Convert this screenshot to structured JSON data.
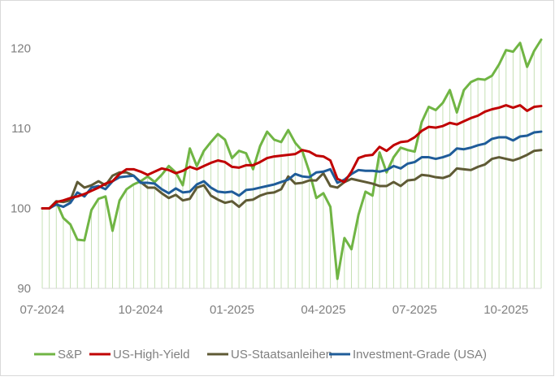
{
  "chart_data": {
    "type": "line",
    "title": "",
    "xlabel": "",
    "ylabel": "",
    "ylim": [
      90,
      122
    ],
    "yticks": [
      90,
      100,
      110,
      120
    ],
    "xticks": [
      "07-2024",
      "10-2024",
      "01-2025",
      "04-2025",
      "07-2025",
      "10-2025"
    ],
    "legend_position": "bottom",
    "grid": "vertical hatching under S&P line",
    "series": [
      {
        "name": "S&P",
        "color": "#70b544",
        "values": [
          100,
          100,
          100.8,
          98.8,
          98,
          96.1,
          96,
          99.8,
          101.2,
          101.5,
          97.2,
          101,
          102.4,
          103,
          103.4,
          104,
          103.3,
          104.2,
          105.3,
          104.5,
          102.9,
          107.5,
          105.3,
          107.2,
          108.3,
          109.3,
          108.6,
          106.3,
          107.2,
          106.9,
          104.9,
          107.8,
          109.6,
          108.6,
          108.3,
          109.8,
          108.2,
          107.2,
          104.6,
          101.3,
          101.9,
          100.2,
          91.2,
          96.3,
          94.9,
          99.2,
          102.1,
          101.6,
          107,
          104.5,
          106.4,
          107.6,
          107.3,
          107.1,
          110.8,
          112.7,
          112.3,
          113.2,
          114.8,
          112,
          114.8,
          115.8,
          116.2,
          116.1,
          116.6,
          118,
          119.8,
          119.6,
          120.7,
          117.7,
          119.7,
          121.1
        ]
      },
      {
        "name": "US-High-Yield",
        "color": "#c00000",
        "values": [
          100,
          100,
          100.8,
          101,
          101.3,
          101.5,
          101.8,
          102.2,
          102.6,
          103.1,
          103.4,
          104.3,
          104.9,
          104.9,
          104.6,
          104.2,
          104.6,
          105,
          104.8,
          104.4,
          104.7,
          105.2,
          104.9,
          105.3,
          105.7,
          106,
          105.8,
          105.2,
          105.1,
          105.4,
          105.4,
          105.8,
          106.3,
          106.5,
          106.6,
          106.7,
          106.8,
          107.3,
          107.1,
          106.6,
          106.5,
          106,
          103.7,
          103.3,
          104.6,
          106.3,
          106.6,
          106.7,
          107.7,
          107.2,
          107.9,
          108.3,
          108.4,
          108.9,
          109.7,
          110.2,
          110.1,
          110.3,
          110.7,
          110.5,
          110.9,
          111.3,
          111.6,
          112.1,
          112.4,
          112.6,
          112.9,
          112.6,
          112.9,
          112.2,
          112.7,
          112.8
        ]
      },
      {
        "name": "US-Staatsanleihen",
        "color": "#5f5a35",
        "values": [
          100,
          100,
          100.9,
          100.8,
          101,
          103.3,
          102.6,
          102.9,
          103.4,
          102.9,
          104.1,
          104.5,
          104.5,
          104.1,
          103.3,
          102.6,
          102.6,
          101.9,
          101.3,
          101.7,
          101,
          101.2,
          102.6,
          102.9,
          101.6,
          101.1,
          100.7,
          100.9,
          100.2,
          101,
          101.1,
          101.6,
          101.9,
          102,
          102.4,
          104,
          103.1,
          103.2,
          103.5,
          103.5,
          104.4,
          102.8,
          102.6,
          103.3,
          103.7,
          103.5,
          103.3,
          103.1,
          102.8,
          102.8,
          103.3,
          102.8,
          103.5,
          103.6,
          104.2,
          104.1,
          103.9,
          103.8,
          104.1,
          105,
          104.9,
          104.8,
          105.2,
          105.5,
          106.2,
          106.4,
          106.2,
          106,
          106.3,
          106.7,
          107.2,
          107.3
        ]
      },
      {
        "name": "Investment-Grade (USA)",
        "color": "#1f5c99",
        "values": [
          100,
          100,
          100.5,
          100.2,
          100.7,
          102,
          101.5,
          102.6,
          102.8,
          102.4,
          103.4,
          103.9,
          104,
          104.1,
          103.2,
          103.2,
          103.1,
          102.4,
          101.9,
          102.5,
          102,
          102.1,
          103,
          103.4,
          102.6,
          102.1,
          102,
          102.1,
          101.6,
          102.3,
          102.4,
          102.6,
          102.8,
          103,
          103.3,
          103.6,
          104.3,
          104,
          103.9,
          104.5,
          104.6,
          104.9,
          103.2,
          103.6,
          104.3,
          104.8,
          104.7,
          104.7,
          104.6,
          104.8,
          105.3,
          105,
          105.6,
          105.8,
          106.4,
          106.4,
          106.2,
          106.4,
          106.7,
          107.5,
          107.4,
          107.6,
          107.9,
          108.1,
          108.7,
          108.9,
          108.9,
          108.5,
          109,
          109.1,
          109.5,
          109.6
        ]
      }
    ]
  }
}
